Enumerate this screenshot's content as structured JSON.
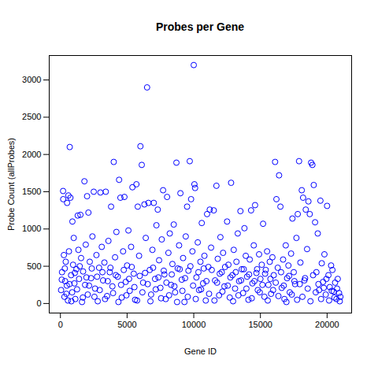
{
  "chart_data": {
    "type": "scatter",
    "title": "Probes per Gene",
    "x_label": "Gene ID",
    "y_label": "Probe Count (allProbes)",
    "x": [
      50,
      120,
      200,
      210,
      260,
      300,
      350,
      400,
      480,
      500,
      560,
      600,
      640,
      700,
      750,
      800,
      880,
      900,
      950,
      1000,
      1050,
      1120,
      1200,
      1300,
      1350,
      1400,
      1500,
      1550,
      1620,
      1700,
      1800,
      1850,
      1900,
      2000,
      2050,
      2100,
      2200,
      2300,
      2400,
      2500,
      2600,
      2700,
      2800,
      2900,
      3000,
      3100,
      3200,
      3300,
      3400,
      3500,
      3600,
      3700,
      3800,
      3900,
      4000,
      4100,
      4200,
      4300,
      4400,
      4500,
      4600,
      4700,
      4800,
      4900,
      5000,
      5100,
      5200,
      5300,
      5400,
      5500,
      5600,
      5700,
      5800,
      5900,
      6000,
      6100,
      6200,
      6300,
      6400,
      6500,
      6600,
      6700,
      6800,
      6900,
      7000,
      7100,
      7200,
      7300,
      7400,
      7500,
      7600,
      7700,
      7800,
      7900,
      8000,
      8100,
      8200,
      8300,
      8400,
      8500,
      8600,
      8700,
      8800,
      8900,
      9000,
      9100,
      9200,
      9300,
      9400,
      9500,
      9600,
      9700,
      9800,
      9900,
      10000,
      10050,
      10100,
      10200,
      10300,
      10400,
      10500,
      10600,
      10700,
      10800,
      10900,
      11000,
      11100,
      11200,
      11300,
      11500,
      11600,
      11700,
      11800,
      11900,
      12000,
      12100,
      12200,
      12300,
      12500,
      12600,
      12700,
      12800,
      12900,
      13000,
      13100,
      13200,
      13300,
      13400,
      13500,
      13600,
      13700,
      13800,
      13900,
      14000,
      14100,
      14200,
      14300,
      14400,
      14500,
      14600,
      14700,
      14800,
      14900,
      15000,
      15100,
      15200,
      15300,
      15400,
      15500,
      15600,
      15700,
      15800,
      15900,
      16000,
      16100,
      16200,
      16300,
      16400,
      16500,
      16600,
      16700,
      16800,
      16900,
      17000,
      17100,
      17200,
      17300,
      17400,
      17500,
      17600,
      17700,
      17800,
      17900,
      18000,
      18100,
      18200,
      18300,
      18400,
      18500,
      18600,
      18700,
      18800,
      18900,
      19000,
      19100,
      19200,
      19300,
      19400,
      19500,
      19600,
      19700,
      19800,
      19900,
      20000,
      20100,
      20200,
      20300,
      20400,
      20500,
      20600,
      20700,
      20800,
      20900,
      21000,
      100,
      330,
      450,
      680,
      820,
      1080,
      1250,
      1450,
      1680,
      1950,
      2150,
      2350,
      2550,
      2750,
      2950,
      3150,
      3350,
      3550,
      3750,
      3950,
      4150,
      4350,
      4550,
      4750,
      4950,
      5150,
      5350,
      5550,
      5750,
      5950,
      6150,
      6350,
      6550,
      6750,
      6950,
      7150,
      7350,
      7550,
      7750,
      7950,
      8150,
      8350,
      8550,
      8750,
      8950,
      9150,
      9350,
      9550,
      9750,
      9950,
      10150,
      10350,
      10550,
      10750,
      10950,
      11150,
      11350,
      11550,
      11750,
      11950,
      12150,
      12350,
      12550,
      12750,
      12950,
      13150,
      13350,
      13550,
      13750,
      13950,
      14150,
      14350,
      14550,
      14750,
      14950,
      15150,
      15350,
      15550,
      15750,
      15950,
      16150,
      16350,
      16550,
      16750,
      16950,
      17150,
      17350,
      17550,
      17750,
      17950,
      18150,
      18350,
      18550,
      18750,
      18950,
      19150,
      19350,
      19550,
      19750,
      19950,
      20150,
      20350,
      20550,
      20750,
      20950
    ],
    "values": [
      180,
      420,
      1510,
      1400,
      650,
      90,
      300,
      560,
      240,
      1350,
      40,
      1450,
      700,
      2100,
      1420,
      380,
      150,
      1100,
      520,
      880,
      270,
      60,
      460,
      1180,
      720,
      330,
      1190,
      610,
      20,
      430,
      1640,
      250,
      790,
      1440,
      120,
      1220,
      560,
      340,
      900,
      1500,
      200,
      650,
      30,
      480,
      1490,
      760,
      310,
      550,
      1500,
      100,
      840,
      420,
      1300,
      230,
      1900,
      620,
      960,
      360,
      1660,
      1420,
      80,
      700,
      1430,
      290,
      510,
      980,
      170,
      760,
      1560,
      400,
      50,
      1600,
      1300,
      640,
      2110,
      1860,
      280,
      1330,
      880,
      2900,
      1350,
      450,
      120,
      720,
      1350,
      330,
      1050,
      1260,
      580,
      210,
      860,
      1520,
      390,
      60,
      1430,
      680,
      940,
      250,
      530,
      1060,
      150,
      1890,
      470,
      780,
      1480,
      320,
      610,
      20,
      900,
      1300,
      440,
      1910,
      1400,
      700,
      3200,
      1600,
      1550,
      350,
      820,
      180,
      560,
      1080,
      270,
      640,
      40,
      1200,
      490,
      1260,
      750,
      1250,
      310,
      1580,
      600,
      110,
      890,
      420,
      680,
      230,
      1100,
      520,
      80,
      1620,
      380,
      720,
      200,
      560,
      940,
      300,
      1240,
      460,
      140,
      1010,
      640,
      360,
      50,
      590,
      1250,
      270,
      780,
      1320,
      410,
      180,
      660,
      330,
      520,
      1070,
      90,
      450,
      700,
      250,
      560,
      130,
      620,
      380,
      1900,
      1400,
      480,
      1720,
      1300,
      210,
      590,
      60,
      780,
      340,
      510,
      150,
      670,
      1140,
      420,
      260,
      880,
      1200,
      1910,
      550,
      1520,
      1420,
      310,
      1260,
      730,
      1370,
      1200,
      1890,
      1860,
      1590,
      1090,
      420,
      940,
      180,
      1380,
      540,
      290,
      660,
      120,
      1310,
      380,
      220,
      510,
      450,
      160,
      280,
      60,
      330,
      140,
      90,
      320,
      470,
      130,
      260,
      30,
      410,
      190,
      500,
      80,
      350,
      240,
      470,
      90,
      360,
      180,
      420,
      60,
      300,
      480,
      140,
      380,
      20,
      250,
      450,
      110,
      330,
      490,
      220,
      40,
      370,
      150,
      410,
      260,
      30,
      480,
      190,
      350,
      70,
      440,
      280,
      110,
      390,
      230,
      20,
      460,
      170,
      340,
      90,
      500,
      240,
      60,
      420,
      190,
      470,
      300,
      130,
      450,
      40,
      280,
      400,
      160,
      490,
      240,
      350,
      30,
      420,
      110,
      310,
      460,
      200,
      390,
      70,
      300,
      460,
      150,
      250,
      400,
      40,
      330,
      180,
      280,
      100,
      420,
      240,
      20,
      370,
      120,
      300,
      50,
      260,
      90,
      340,
      200,
      30,
      380,
      150,
      260,
      60,
      210,
      330,
      40,
      170,
      80,
      200,
      30
    ],
    "color": "#0000ff",
    "marker": "circle",
    "grid": false,
    "xlim": [
      -840,
      21840
    ],
    "xticks": [
      0,
      5000,
      10000,
      15000,
      20000
    ],
    "ylim": [
      -128,
      3328
    ],
    "yticks": [
      0,
      500,
      1000,
      1500,
      2000,
      2500,
      3000
    ]
  }
}
